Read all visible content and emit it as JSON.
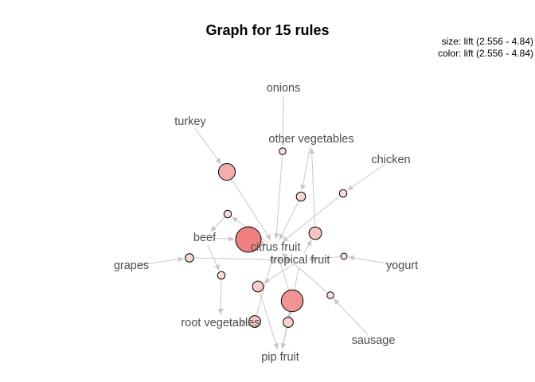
{
  "title": "Graph for 15 rules",
  "legend": {
    "size": "size: lift (2.556 - 4.84)",
    "color": "color: lift (2.556 - 4.84)"
  },
  "colors": {
    "edge": "#c8c8c8",
    "label": "#4d4d4d",
    "rule_low": "#fbe1e1",
    "rule_high": "#f08080"
  },
  "items": [
    {
      "id": "onions",
      "label": "onions"
    },
    {
      "id": "turkey",
      "label": "turkey"
    },
    {
      "id": "other_vegetables",
      "label": "other vegetables"
    },
    {
      "id": "chicken",
      "label": "chicken"
    },
    {
      "id": "beef",
      "label": "beef"
    },
    {
      "id": "citrus_fruit",
      "label": "citrus fruit"
    },
    {
      "id": "tropical_fruit",
      "label": "tropical fruit"
    },
    {
      "id": "grapes",
      "label": "grapes"
    },
    {
      "id": "yogurt",
      "label": "yogurt"
    },
    {
      "id": "root_vegetables",
      "label": "root vegetables"
    },
    {
      "id": "sausage",
      "label": "sausage"
    },
    {
      "id": "pip_fruit",
      "label": "pip fruit"
    }
  ],
  "rules": [
    {
      "id": "r1",
      "lift": 3.8
    },
    {
      "id": "r2",
      "lift": 2.6
    },
    {
      "id": "r3",
      "lift": 2.9
    },
    {
      "id": "r4",
      "lift": 2.7
    },
    {
      "id": "r5",
      "lift": 2.7
    },
    {
      "id": "r6",
      "lift": 4.84
    },
    {
      "id": "r7",
      "lift": 3.3
    },
    {
      "id": "r8",
      "lift": 2.8
    },
    {
      "id": "r9",
      "lift": 2.556
    },
    {
      "id": "r10",
      "lift": 2.7
    },
    {
      "id": "r11",
      "lift": 3.1
    },
    {
      "id": "r12",
      "lift": 4.4
    },
    {
      "id": "r13",
      "lift": 2.6
    },
    {
      "id": "r14",
      "lift": 3.2
    },
    {
      "id": "r15",
      "lift": 3.0
    }
  ],
  "edges": [
    [
      "turkey",
      "r1"
    ],
    [
      "r1",
      "citrus_fruit"
    ],
    [
      "onions",
      "r2"
    ],
    [
      "r2",
      "citrus_fruit"
    ],
    [
      "other_vegetables",
      "r3"
    ],
    [
      "r3",
      "citrus_fruit"
    ],
    [
      "chicken",
      "r4"
    ],
    [
      "r4",
      "citrus_fruit"
    ],
    [
      "citrus_fruit",
      "r5"
    ],
    [
      "r5",
      "beef"
    ],
    [
      "beef",
      "r6"
    ],
    [
      "r6",
      "citrus_fruit"
    ],
    [
      "tropical_fruit",
      "r7"
    ],
    [
      "r7",
      "other_vegetables"
    ],
    [
      "grapes",
      "r8"
    ],
    [
      "r8",
      "tropical_fruit"
    ],
    [
      "yogurt",
      "r9"
    ],
    [
      "r9",
      "tropical_fruit"
    ],
    [
      "beef",
      "r10"
    ],
    [
      "r10",
      "root_vegetables"
    ],
    [
      "tropical_fruit",
      "r11"
    ],
    [
      "r11",
      "pip_fruit"
    ],
    [
      "pip_fruit",
      "r12"
    ],
    [
      "r12",
      "citrus_fruit"
    ],
    [
      "sausage",
      "r13"
    ],
    [
      "r13",
      "citrus_fruit"
    ],
    [
      "root_vegetables",
      "r14"
    ],
    [
      "r14",
      "citrus_fruit"
    ],
    [
      "tropical_fruit",
      "r15"
    ],
    [
      "r15",
      "pip_fruit"
    ]
  ]
}
